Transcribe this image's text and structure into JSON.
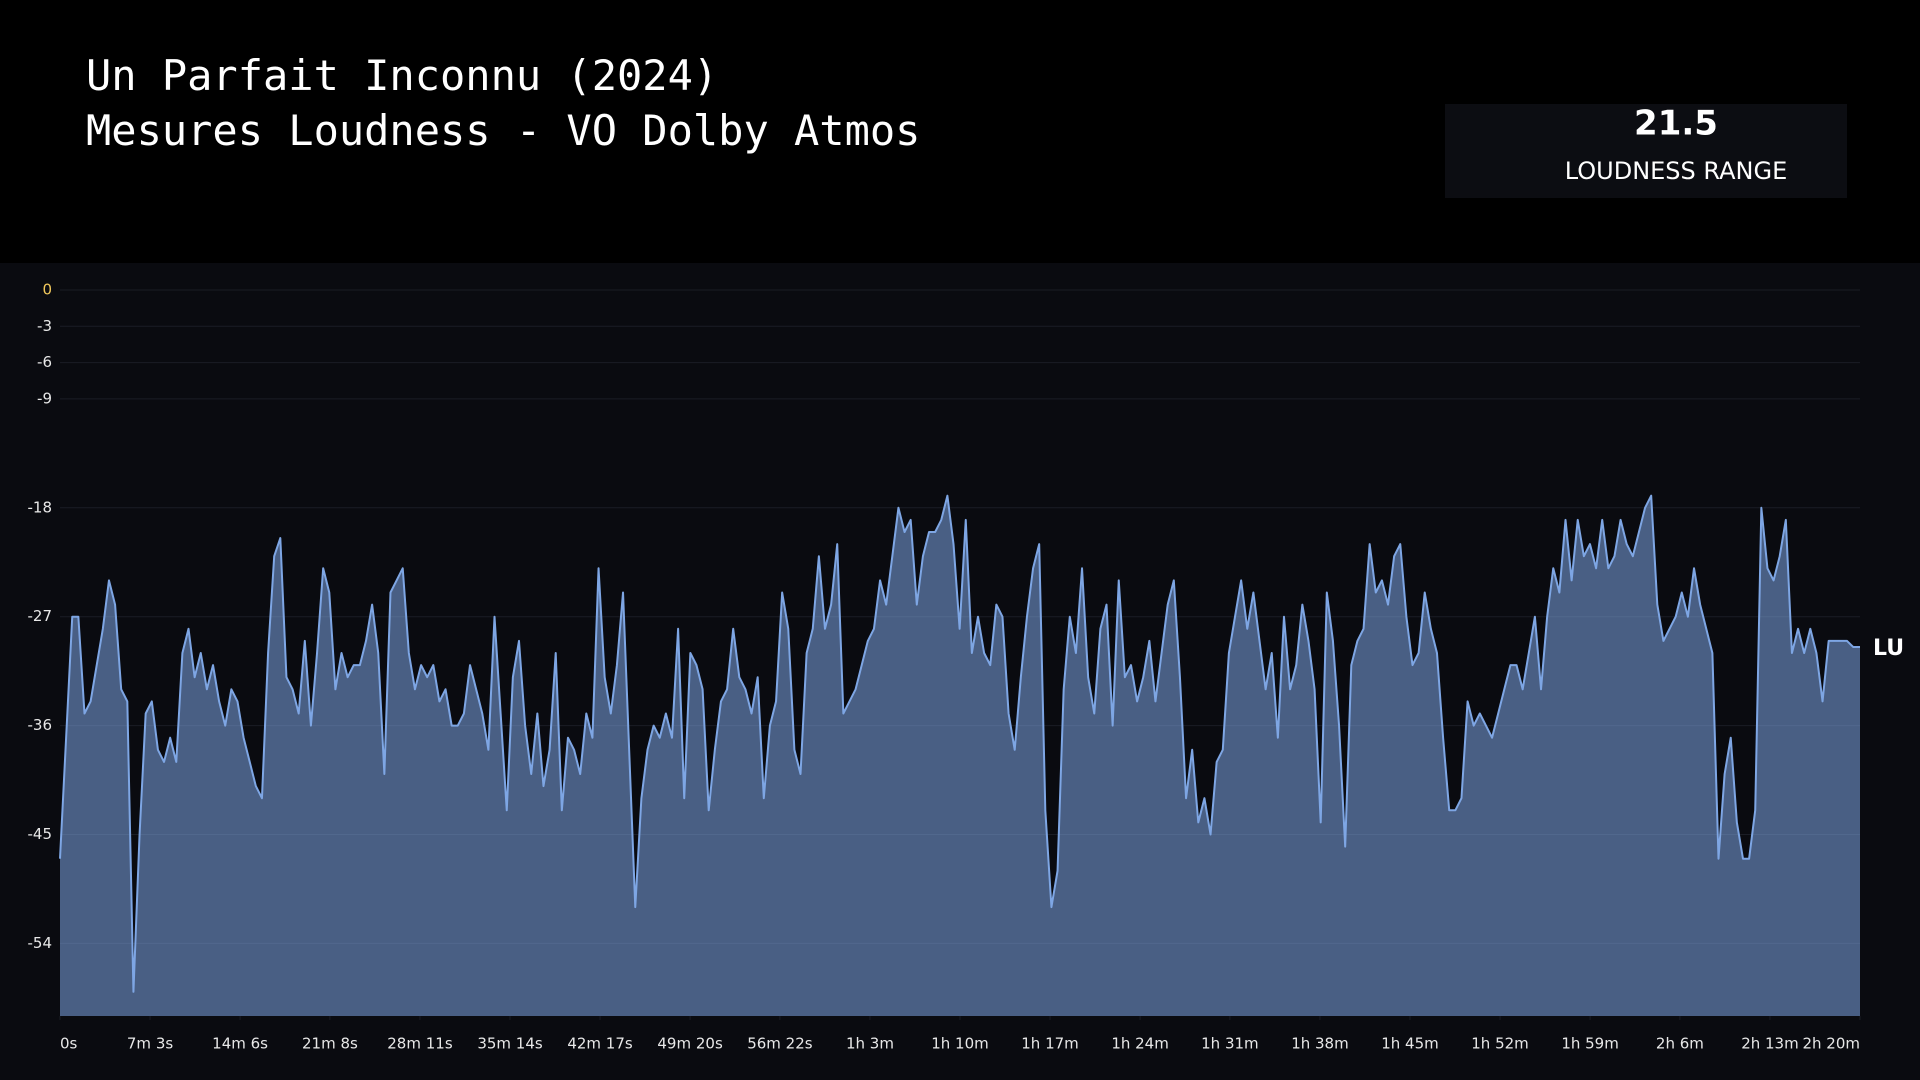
{
  "header": {
    "title_lines": [
      "Un Parfait Inconnu (2024)",
      "Mesures Loudness - VO Dolby Atmos"
    ]
  },
  "stat": {
    "value": 21.5,
    "label": "LOUDNESS RANGE"
  },
  "chart_data": {
    "type": "area",
    "x": [
      0,
      28.75,
      57.5,
      86.25,
      115,
      143.75,
      172.5,
      201.25,
      230,
      258.75,
      287.5,
      316.25,
      345,
      373.75,
      402.5,
      431.25,
      460,
      488.75,
      517.5,
      546.25,
      575,
      603.75,
      632.5,
      661.25,
      690,
      718.75,
      747.5,
      776.25,
      805,
      833.75,
      862.5,
      891.25,
      920,
      948.75,
      977.5,
      1006.25,
      1035,
      1063.75,
      1092.5,
      1121.25,
      1150,
      1178.75,
      1207.5,
      1236.25,
      1265,
      1293.75,
      1322.5,
      1351.25,
      1380,
      1408.75,
      1437.5,
      1466.25,
      1495,
      1523.75,
      1552.5,
      1581.25,
      1610,
      1638.75,
      1667.5,
      1696.25,
      1725,
      1753.75,
      1782.5,
      1811.25,
      1840,
      1868.75,
      1897.5,
      1926.25,
      1955,
      1983.75,
      2012.5,
      2041.25,
      2070,
      2098.75,
      2127.5,
      2156.25,
      2185,
      2213.75,
      2242.5,
      2271.25,
      2300,
      2328.75,
      2357.5,
      2386.25,
      2415,
      2443.75,
      2472.5,
      2501.25,
      2530,
      2558.75,
      2587.5,
      2616.25,
      2645,
      2673.75,
      2702.5,
      2731.25,
      2760,
      2788.75,
      2817.5,
      2846.25,
      2875,
      2903.75,
      2932.5,
      2961.25,
      2990,
      3018.75,
      3047.5,
      3076.25,
      3105,
      3133.75,
      3162.5,
      3191.25,
      3220,
      3248.75,
      3277.5,
      3306.25,
      3335,
      3363.75,
      3392.5,
      3421.25,
      3450,
      3478.75,
      3507.5,
      3536.25,
      3565,
      3593.75,
      3622.5,
      3651.25,
      3680,
      3708.75,
      3737.5,
      3766.25,
      3795,
      3823.75,
      3852.5,
      3881.25,
      3910,
      3938.75,
      3967.5,
      3996.25,
      4025,
      4053.75,
      4082.5,
      4111.25,
      4140,
      4168.75,
      4197.5,
      4226.25,
      4255,
      4283.75,
      4312.5,
      4341.25,
      4370,
      4398.75,
      4427.5,
      4456.25,
      4485,
      4513.75,
      4542.5,
      4571.25,
      4600,
      4628.75,
      4657.5,
      4686.25,
      4715,
      4743.75,
      4772.5,
      4801.25,
      4830,
      4858.75,
      4887.5,
      4916.25,
      4945,
      4973.75,
      5002.5,
      5031.25,
      5060,
      5088.75,
      5117.5,
      5146.25,
      5175,
      5203.75,
      5232.5,
      5261.25,
      5290,
      5318.75,
      5347.5,
      5376.25,
      5405,
      5433.75,
      5462.5,
      5491.25,
      5520,
      5548.75,
      5577.5,
      5606.25,
      5635,
      5663.75,
      5692.5,
      5721.25,
      5750,
      5778.75,
      5807.5,
      5836.25,
      5865,
      5893.75,
      5922.5,
      5951.25,
      5980,
      6008.75,
      6037.5,
      6066.25,
      6095,
      6123.75,
      6152.5,
      6181.25,
      6210,
      6238.75,
      6267.5,
      6296.25,
      6325,
      6353.75,
      6382.5,
      6411.25,
      6440,
      6468.75,
      6497.5,
      6526.25,
      6555,
      6583.75,
      6612.5,
      6641.25,
      6670,
      6698.75,
      6727.5,
      6756.25,
      6785,
      6813.75,
      6842.5,
      6871.25,
      6900,
      6928.75,
      6957.5,
      6986.25,
      7015,
      7043.75,
      7072.5,
      7101.25,
      7130,
      7158.75,
      7187.5,
      7216.25,
      7245,
      7273.75,
      7302.5,
      7331.25,
      7360,
      7388.75,
      7417.5,
      7446.25,
      7475,
      7503.75,
      7532.5,
      7561.25,
      7590,
      7618.75,
      7647.5,
      7676.25,
      7705,
      7733.75,
      7762.5,
      7791.25,
      7820,
      7848.75,
      7877.5,
      7906.25,
      7935,
      7963.75,
      7992.5,
      8021.25,
      8050,
      8078.75,
      8107.5,
      8136.25,
      8165,
      8193.75,
      8222.5,
      8251.25,
      8280,
      8308.75,
      8337.5,
      8366.25,
      8395,
      8423.75,
      8456
    ],
    "series": [
      {
        "name": "LU",
        "color": "#7ea6e4",
        "values": [
          -47,
          -37,
          -27,
          -27,
          -35,
          -34,
          -31,
          -28,
          -24,
          -26,
          -33,
          -34,
          -58,
          -45,
          -35,
          -34,
          -38,
          -39,
          -37,
          -39,
          -30,
          -28,
          -32,
          -30,
          -33,
          -31,
          -34,
          -36,
          -33,
          -34,
          -37,
          -39,
          -41,
          -42,
          -30,
          -22,
          -20.5,
          -32,
          -33,
          -35,
          -29,
          -36,
          -30,
          -23,
          -25,
          -33,
          -30,
          -32,
          -31,
          -31,
          -29,
          -26,
          -30,
          -40,
          -25,
          -24,
          -23,
          -30,
          -33,
          -31,
          -32,
          -31,
          -34,
          -33,
          -36,
          -36,
          -35,
          -31,
          -33,
          -35,
          -38,
          -27,
          -35,
          -43,
          -32,
          -29,
          -36,
          -40,
          -35,
          -41,
          -38,
          -30,
          -43,
          -37,
          -38,
          -40,
          -35,
          -37,
          -23,
          -32,
          -35,
          -31,
          -25,
          -38,
          -51,
          -42,
          -38,
          -36,
          -37,
          -35,
          -37,
          -28,
          -42,
          -30,
          -31,
          -33,
          -43,
          -38,
          -34,
          -33,
          -28,
          -32,
          -33,
          -35,
          -32,
          -42,
          -36,
          -34,
          -25,
          -28,
          -38,
          -40,
          -30,
          -28,
          -22,
          -28,
          -26,
          -21,
          -35,
          -34,
          -33,
          -31,
          -29,
          -28,
          -24,
          -26,
          -22,
          -18,
          -20,
          -19,
          -26,
          -22,
          -20,
          -20,
          -19,
          -17,
          -21,
          -28,
          -19,
          -30,
          -27,
          -30,
          -31,
          -26,
          -27,
          -35,
          -38,
          -32,
          -27,
          -23,
          -21,
          -43,
          -51,
          -48,
          -33,
          -27,
          -30,
          -23,
          -32,
          -35,
          -28,
          -26,
          -36,
          -24,
          -32,
          -31,
          -34,
          -32,
          -29,
          -34,
          -30,
          -26,
          -24,
          -32,
          -42,
          -38,
          -44,
          -42,
          -45,
          -39,
          -38,
          -30,
          -27,
          -24,
          -28,
          -25,
          -29,
          -33,
          -30,
          -37,
          -27,
          -33,
          -31,
          -26,
          -29,
          -33,
          -44,
          -25,
          -29,
          -36,
          -46,
          -31,
          -29,
          -28,
          -21,
          -25,
          -24,
          -26,
          -22,
          -21,
          -27,
          -31,
          -30,
          -25,
          -28,
          -30,
          -37,
          -43,
          -43,
          -42,
          -34,
          -36,
          -35,
          -36,
          -37,
          -35,
          -33,
          -31,
          -31,
          -33,
          -30,
          -27,
          -33,
          -27,
          -23,
          -25,
          -19,
          -24,
          -19,
          -22,
          -21,
          -23,
          -19,
          -23,
          -22,
          -19,
          -21,
          -22,
          -20,
          -18,
          -17,
          -26,
          -29,
          -28,
          -27,
          -25,
          -27,
          -23,
          -26,
          -28,
          -30,
          -47,
          -40,
          -37,
          -44,
          -47,
          -47,
          -43,
          -18,
          -23,
          -24,
          -22,
          -19,
          -30,
          -28,
          -30,
          -28,
          -30,
          -34,
          -29,
          -29,
          -29,
          -29,
          -29.5,
          -29.5
        ]
      }
    ],
    "xlim": [
      0,
      8456
    ],
    "xticks": [
      {
        "value": 0,
        "label": "0s"
      },
      {
        "value": 423,
        "label": "7m 3s"
      },
      {
        "value": 846,
        "label": "14m 6s"
      },
      {
        "value": 1268,
        "label": "21m 8s"
      },
      {
        "value": 1691,
        "label": "28m 11s"
      },
      {
        "value": 2114,
        "label": "35m 14s"
      },
      {
        "value": 2537,
        "label": "42m 17s"
      },
      {
        "value": 2960,
        "label": "49m 20s"
      },
      {
        "value": 3382,
        "label": "56m 22s"
      },
      {
        "value": 3805,
        "label": "1h 3m"
      },
      {
        "value": 4228,
        "label": "1h 10m"
      },
      {
        "value": 4651,
        "label": "1h 17m"
      },
      {
        "value": 5074,
        "label": "1h 24m"
      },
      {
        "value": 5496,
        "label": "1h 31m"
      },
      {
        "value": 5919,
        "label": "1h 38m"
      },
      {
        "value": 6342,
        "label": "1h 45m"
      },
      {
        "value": 6765,
        "label": "1h 52m"
      },
      {
        "value": 7188,
        "label": "1h 59m"
      },
      {
        "value": 7610,
        "label": "2h 6m"
      },
      {
        "value": 8033,
        "label": "2h 13m"
      },
      {
        "value": 8456,
        "label": "2h 20m"
      }
    ],
    "ylim": [
      -60,
      0
    ],
    "yticks": [
      0,
      -3,
      -6,
      -9,
      -18,
      -27,
      -36,
      -45,
      -54
    ],
    "grid": true
  }
}
